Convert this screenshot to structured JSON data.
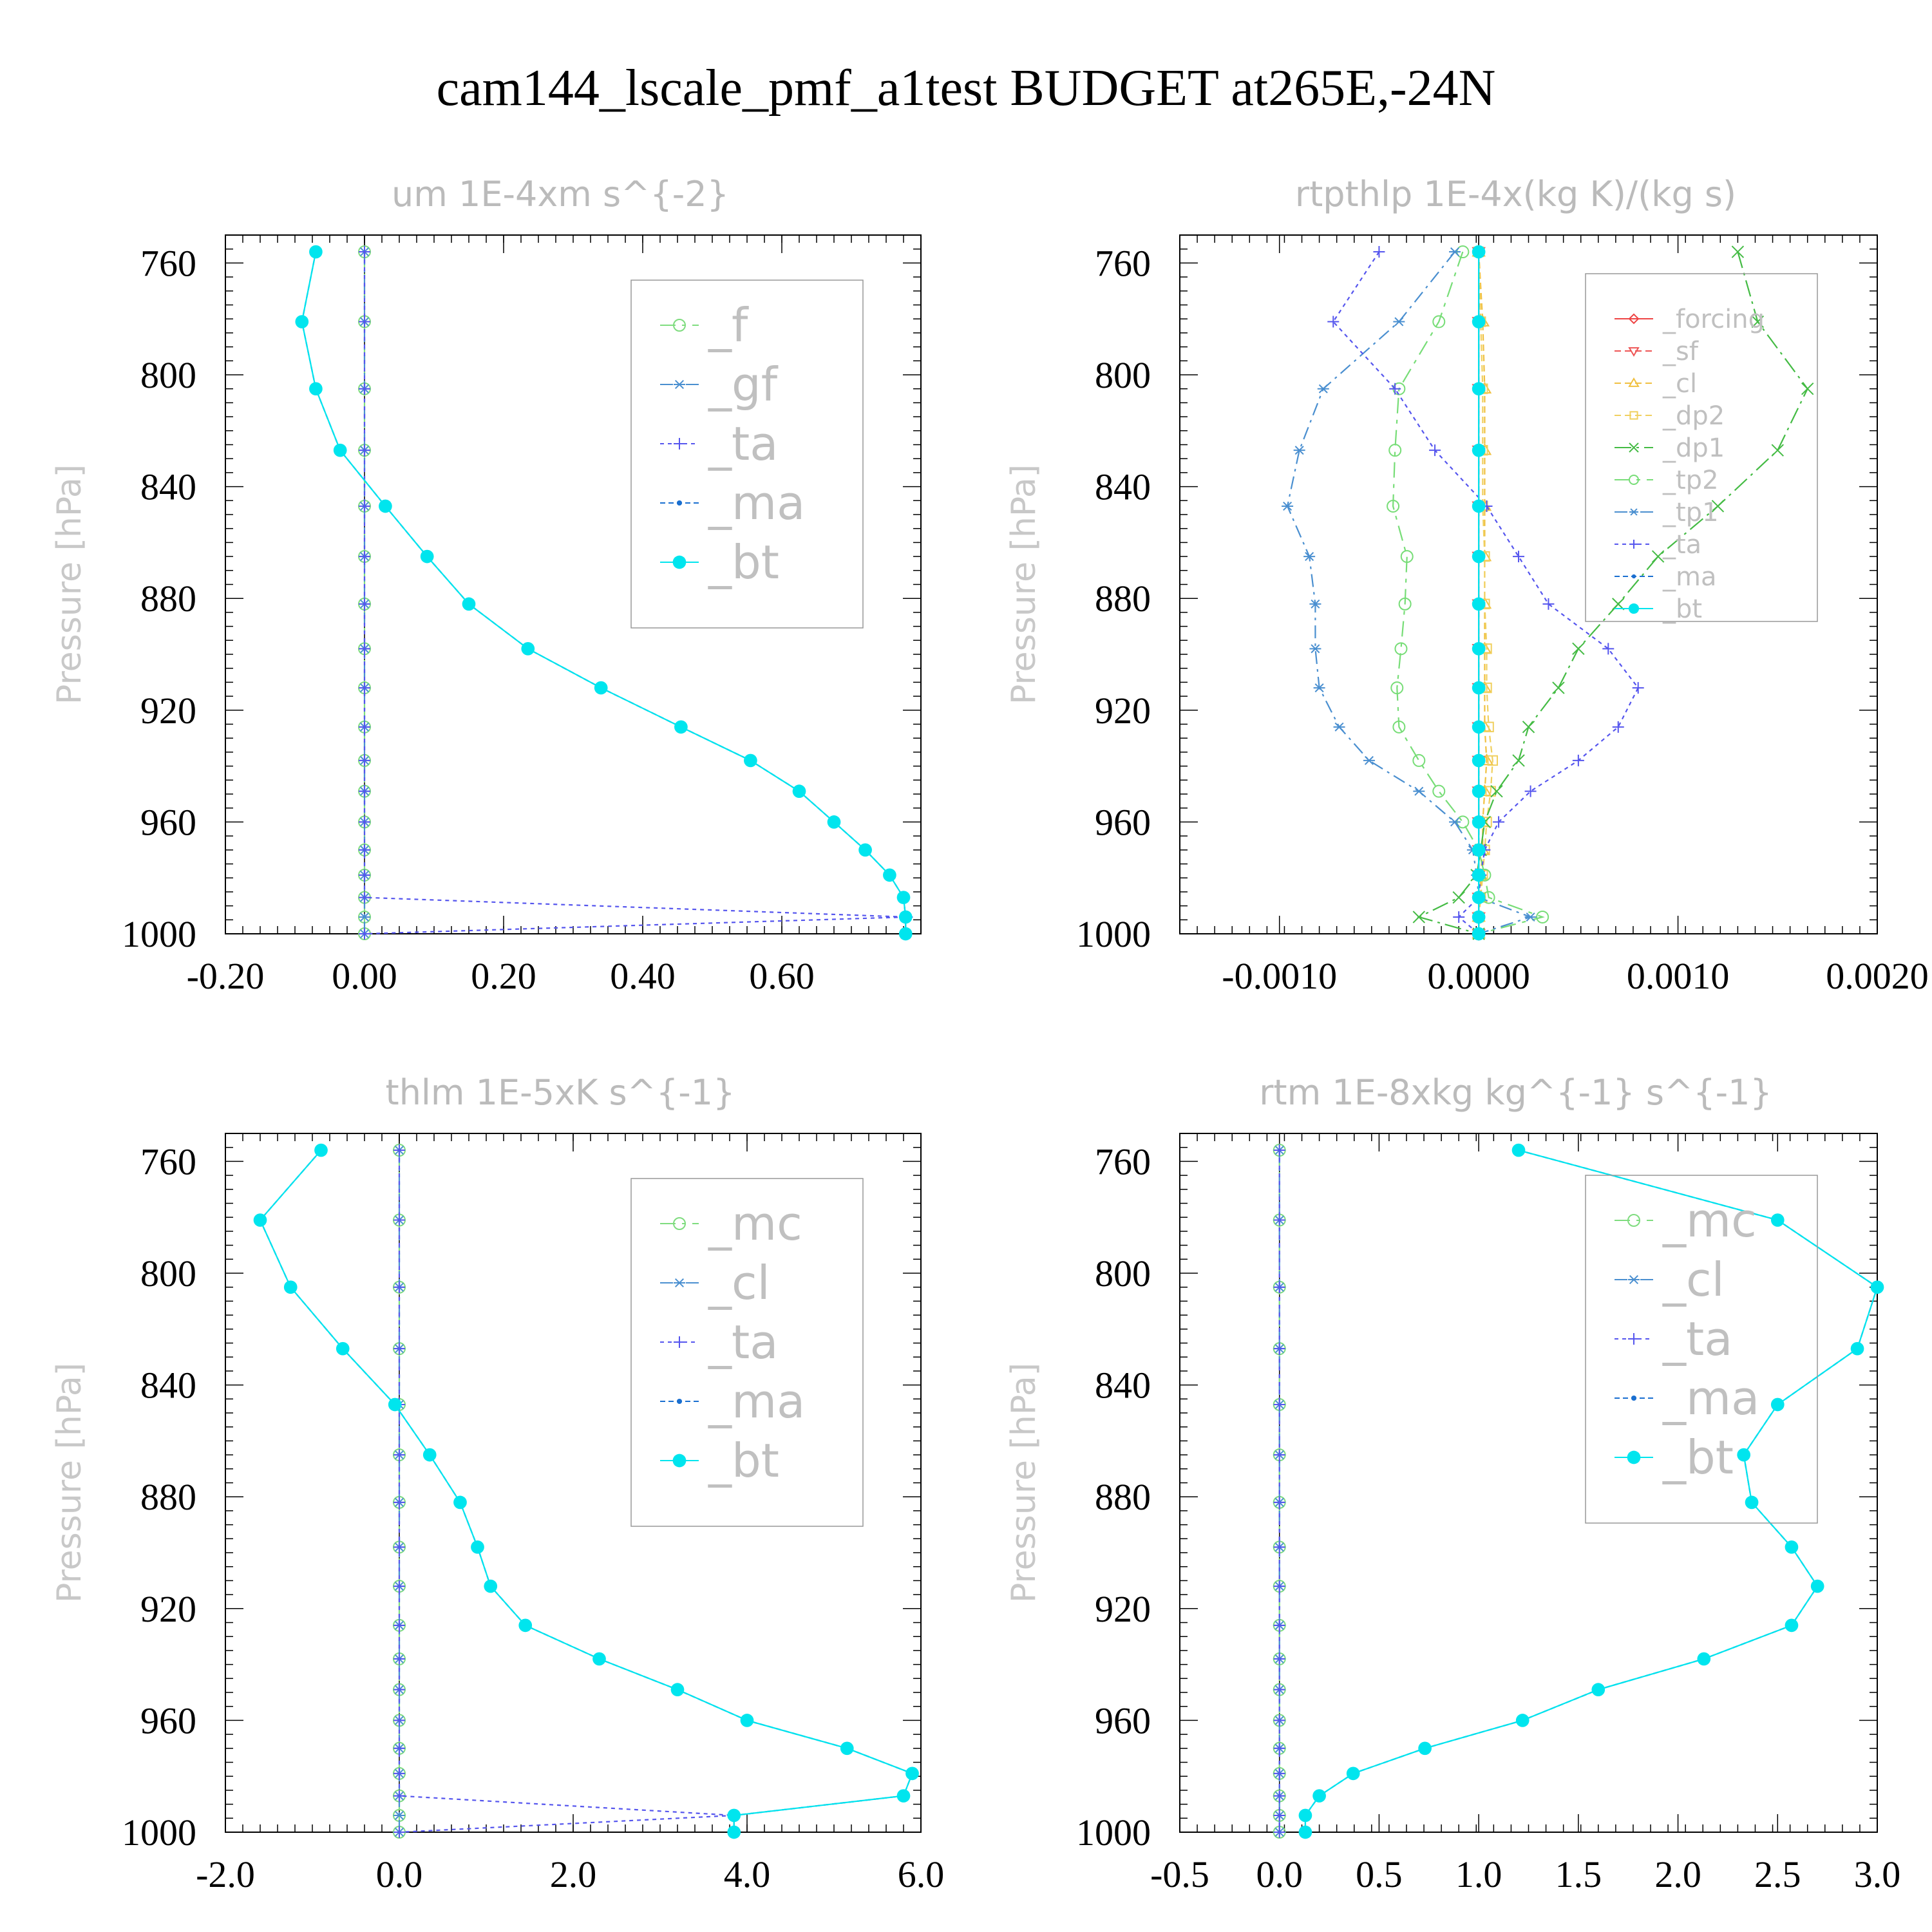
{
  "title": "cam144_lscale_pmf_a1test  BUDGET at265E,-24N",
  "chart_data": [
    {
      "type": "line",
      "title": "um  1E-4xm s^{-2}",
      "ylabel": "Pressure [hPa]",
      "xlim": [
        -0.2,
        0.8
      ],
      "ylim": [
        1000,
        750
      ],
      "xticks": [
        "-0.20",
        "0.00",
        "0.20",
        "0.40",
        "0.60"
      ],
      "yticks": [
        "760",
        "800",
        "840",
        "880",
        "920",
        "960",
        "1000"
      ],
      "levels": [
        756,
        781,
        805,
        827,
        847,
        865,
        882,
        898,
        912,
        926,
        938,
        949,
        960,
        970,
        979,
        987,
        994,
        1000
      ],
      "legend": [
        "_f",
        "_gf",
        "_ta",
        "_ma",
        "_bt"
      ],
      "series": [
        {
          "name": "_f",
          "color": "#7fdc7f",
          "marker": "circle",
          "values": [
            0,
            0,
            0,
            0,
            0,
            0,
            0,
            0,
            0,
            0,
            0,
            0,
            0,
            0,
            0,
            0,
            0,
            0
          ]
        },
        {
          "name": "_gf",
          "color": "#4a8fd0",
          "marker": "star",
          "values": [
            0,
            0,
            0,
            0,
            0,
            0,
            0,
            0,
            0,
            0,
            0,
            0,
            0,
            0,
            0,
            0,
            0,
            0
          ]
        },
        {
          "name": "_ta",
          "color": "#5555ee",
          "marker": "plus",
          "values": [
            0,
            0,
            0,
            0,
            0,
            0,
            0,
            0,
            0,
            0,
            0,
            0,
            0,
            0,
            0,
            0,
            0.78,
            0
          ]
        },
        {
          "name": "_ma",
          "color": "#1a6fd0",
          "marker": "dot",
          "values": [
            -0.07,
            -0.09,
            -0.07,
            -0.035,
            0.03,
            0.09,
            0.15,
            0.235,
            0.34,
            0.455,
            0.555,
            0.625,
            0.675,
            0.72,
            0.755,
            0.775,
            0.778,
            0.778
          ]
        },
        {
          "name": "_bt",
          "color": "#00e5ee",
          "marker": "filled",
          "values": [
            -0.07,
            -0.09,
            -0.07,
            -0.035,
            0.03,
            0.09,
            0.15,
            0.235,
            0.34,
            0.455,
            0.555,
            0.625,
            0.675,
            0.72,
            0.755,
            0.775,
            0.778,
            0.778
          ]
        }
      ]
    },
    {
      "type": "line",
      "title": "rtpthlp  1E-4x(kg K)/(kg s)",
      "ylabel": "Pressure [hPa]",
      "xlim": [
        -0.0015,
        0.002
      ],
      "ylim": [
        1000,
        750
      ],
      "xticks": [
        "-0.0010",
        "0.0000",
        "0.0010",
        "0.0020"
      ],
      "yticks": [
        "760",
        "800",
        "840",
        "880",
        "920",
        "960",
        "1000"
      ],
      "levels": [
        756,
        781,
        805,
        827,
        847,
        865,
        882,
        898,
        912,
        926,
        938,
        949,
        960,
        970,
        979,
        987,
        994,
        1000
      ],
      "legend": [
        "_forcing",
        "_sf",
        "_cl",
        "_dp2",
        "_dp1",
        "_tp2",
        "_tp1",
        "_ta",
        "_ma",
        "_bt"
      ],
      "series": [
        {
          "name": "_forcing",
          "color": "#ee4444",
          "marker": "diamond",
          "values": [
            0,
            0,
            0,
            0,
            0,
            0,
            0,
            0,
            0,
            0,
            0,
            0,
            0,
            0,
            0,
            0,
            0,
            0
          ]
        },
        {
          "name": "_sf",
          "color": "#ee5555",
          "marker": "tri-down",
          "values": [
            0,
            0,
            0,
            0,
            0,
            0,
            0,
            0,
            0,
            0,
            0,
            0,
            0,
            0,
            0,
            0,
            0,
            0
          ]
        },
        {
          "name": "_cl",
          "color": "#f0c040",
          "marker": "tri-up",
          "values": [
            0,
            2e-05,
            3e-05,
            3e-05,
            3e-05,
            3e-05,
            3e-05,
            3e-05,
            3e-05,
            3e-05,
            4e-05,
            3e-05,
            2e-05,
            2e-05,
            1e-05,
            1e-05,
            0,
            0
          ]
        },
        {
          "name": "_dp2",
          "color": "#f0d060",
          "marker": "square",
          "values": [
            0,
            1e-05,
            2e-05,
            2e-05,
            2e-05,
            3e-05,
            3e-05,
            4e-05,
            4e-05,
            5e-05,
            7e-05,
            6e-05,
            4e-05,
            3e-05,
            2e-05,
            1e-05,
            0,
            0
          ]
        },
        {
          "name": "_dp1",
          "color": "#44bb44",
          "marker": "x",
          "values": [
            0.0013,
            0.0014,
            0.00165,
            0.0015,
            0.0012,
            0.0009,
            0.0007,
            0.0005,
            0.0004,
            0.00025,
            0.0002,
            9e-05,
            3e-05,
            1e-05,
            -1e-05,
            -0.0001,
            -0.0003,
            0
          ]
        },
        {
          "name": "_tp2",
          "color": "#77dd77",
          "marker": "circle",
          "values": [
            -8e-05,
            -0.0002,
            -0.0004,
            -0.00042,
            -0.00043,
            -0.00036,
            -0.00037,
            -0.00039,
            -0.00041,
            -0.0004,
            -0.0003,
            -0.0002,
            -8e-05,
            0,
            3e-05,
            5e-05,
            0.00032,
            0
          ]
        },
        {
          "name": "_tp1",
          "color": "#4a8fd0",
          "marker": "star",
          "values": [
            -0.00012,
            -0.0004,
            -0.00078,
            -0.0009,
            -0.00096,
            -0.00085,
            -0.00082,
            -0.00082,
            -0.0008,
            -0.0007,
            -0.00055,
            -0.0003,
            -0.00012,
            -3e-05,
            -1e-05,
            0,
            0.00026,
            0
          ]
        },
        {
          "name": "_ta",
          "color": "#5555ee",
          "marker": "plus",
          "values": [
            -0.0005,
            -0.00073,
            -0.00042,
            -0.00022,
            4e-05,
            0.0002,
            0.00035,
            0.00065,
            0.0008,
            0.0007,
            0.0005,
            0.00026,
            0.0001,
            3e-05,
            1e-05,
            0,
            -0.0001,
            0
          ]
        },
        {
          "name": "_ma",
          "color": "#1a6fd0",
          "marker": "dot",
          "values": [
            0,
            0,
            0,
            0,
            0,
            0,
            0,
            0,
            0,
            0,
            0,
            0,
            0,
            0,
            0,
            0,
            0,
            0
          ]
        },
        {
          "name": "_bt",
          "color": "#00e5ee",
          "marker": "filled",
          "values": [
            0,
            0,
            0,
            0,
            0,
            0,
            0,
            0,
            0,
            0,
            0,
            0,
            0,
            0,
            0,
            0,
            0,
            0
          ]
        }
      ]
    },
    {
      "type": "line",
      "title": "thlm  1E-5xK s^{-1}",
      "ylabel": "Pressure [hPa]",
      "xlim": [
        -2.0,
        6.0
      ],
      "ylim": [
        1000,
        750
      ],
      "xticks": [
        "-2.0",
        "0.0",
        "2.0",
        "4.0",
        "6.0"
      ],
      "yticks": [
        "760",
        "800",
        "840",
        "880",
        "920",
        "960",
        "1000"
      ],
      "levels": [
        756,
        781,
        805,
        827,
        847,
        865,
        882,
        898,
        912,
        926,
        938,
        949,
        960,
        970,
        979,
        987,
        994,
        1000
      ],
      "legend": [
        "_mc",
        "_cl",
        "_ta",
        "_ma",
        "_bt"
      ],
      "series": [
        {
          "name": "_mc",
          "color": "#7fdc7f",
          "marker": "circle",
          "values": [
            0,
            0,
            0,
            0,
            0,
            0,
            0,
            0,
            0,
            0,
            0,
            0,
            0,
            0,
            0,
            0,
            0,
            0
          ]
        },
        {
          "name": "_cl",
          "color": "#4a8fd0",
          "marker": "star",
          "values": [
            0,
            0,
            0,
            0,
            0,
            0,
            0,
            0,
            0,
            0,
            0,
            0,
            0,
            0,
            0,
            0,
            0,
            0
          ]
        },
        {
          "name": "_ta",
          "color": "#5555ee",
          "marker": "plus",
          "values": [
            0,
            0,
            0,
            0,
            0,
            0,
            0,
            0,
            0,
            0,
            0,
            0,
            0,
            0,
            0,
            0,
            3.85,
            0
          ]
        },
        {
          "name": "_ma",
          "color": "#1a6fd0",
          "marker": "dot",
          "values": [
            -0.9,
            -1.6,
            -1.25,
            -0.65,
            -0.05,
            0.35,
            0.7,
            0.9,
            1.05,
            1.45,
            2.3,
            3.2,
            4.0,
            5.15,
            5.9,
            5.8,
            3.85,
            3.85
          ]
        },
        {
          "name": "_bt",
          "color": "#00e5ee",
          "marker": "filled",
          "values": [
            -0.9,
            -1.6,
            -1.25,
            -0.65,
            -0.05,
            0.35,
            0.7,
            0.9,
            1.05,
            1.45,
            2.3,
            3.2,
            4.0,
            5.15,
            5.9,
            5.8,
            3.85,
            3.85
          ]
        }
      ]
    },
    {
      "type": "line",
      "title": "rtm  1E-8xkg kg^{-1} s^{-1}",
      "ylabel": "Pressure [hPa]",
      "xlim": [
        -0.5,
        3.0
      ],
      "ylim": [
        1000,
        750
      ],
      "xticks": [
        "-0.5",
        "0.0",
        "0.5",
        "1.0",
        "1.5",
        "2.0",
        "2.5",
        "3.0"
      ],
      "yticks": [
        "760",
        "800",
        "840",
        "880",
        "920",
        "960",
        "1000"
      ],
      "levels": [
        756,
        781,
        805,
        827,
        847,
        865,
        882,
        898,
        912,
        926,
        938,
        949,
        960,
        970,
        979,
        987,
        994,
        1000
      ],
      "legend": [
        "_mc",
        "_cl",
        "_ta",
        "_ma",
        "_bt"
      ],
      "series": [
        {
          "name": "_mc",
          "color": "#7fdc7f",
          "marker": "circle",
          "values": [
            0,
            0,
            0,
            0,
            0,
            0,
            0,
            0,
            0,
            0,
            0,
            0,
            0,
            0,
            0,
            0,
            0,
            0
          ]
        },
        {
          "name": "_cl",
          "color": "#4a8fd0",
          "marker": "star",
          "values": [
            0,
            0,
            0,
            0,
            0,
            0,
            0,
            0,
            0,
            0,
            0,
            0,
            0,
            0,
            0,
            0,
            0,
            0
          ]
        },
        {
          "name": "_ta",
          "color": "#5555ee",
          "marker": "plus",
          "values": [
            0,
            0,
            0,
            0,
            0,
            0,
            0,
            0,
            0,
            0,
            0,
            0,
            0,
            0,
            0,
            0,
            0,
            0
          ]
        },
        {
          "name": "_ma",
          "color": "#1a6fd0",
          "marker": "dot",
          "values": [
            1.2,
            2.5,
            3.0,
            2.9,
            2.5,
            2.33,
            2.37,
            2.57,
            2.7,
            2.57,
            2.13,
            1.6,
            1.22,
            0.73,
            0.37,
            0.2,
            0.13,
            0.13
          ]
        },
        {
          "name": "_bt",
          "color": "#00e5ee",
          "marker": "filled",
          "values": [
            1.2,
            2.5,
            3.0,
            2.9,
            2.5,
            2.33,
            2.37,
            2.57,
            2.7,
            2.57,
            2.13,
            1.6,
            1.22,
            0.73,
            0.37,
            0.2,
            0.13,
            0.13
          ]
        }
      ]
    }
  ]
}
